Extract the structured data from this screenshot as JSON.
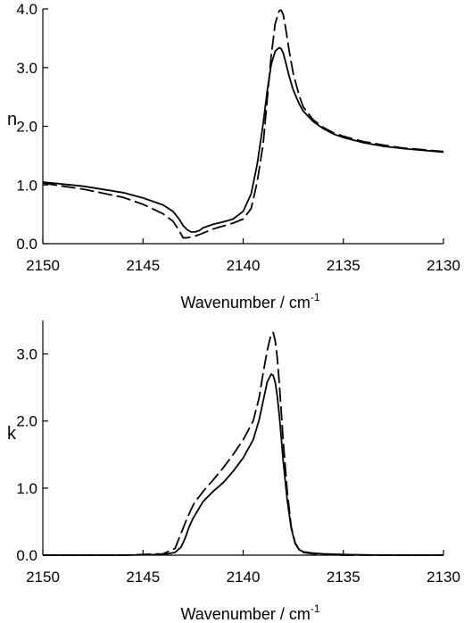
{
  "chart_data": [
    {
      "type": "line",
      "ylabel": "n",
      "xlabel": "Wavenumber / cm",
      "xlabel_sup": "-1",
      "xlim": [
        2150,
        2130
      ],
      "ylim": [
        0,
        4
      ],
      "xticks": [
        "2150",
        "2145",
        "2140",
        "2135",
        "2130"
      ],
      "xtick_values": [
        2150,
        2145,
        2140,
        2135,
        2130
      ],
      "yticks": [
        "0.0",
        "1.0",
        "2.0",
        "3.0",
        "4.0"
      ],
      "ytick_values": [
        0,
        1,
        2,
        3,
        4
      ],
      "grid": false,
      "series": [
        {
          "style": "solid",
          "x": [
            2150,
            2148,
            2146,
            2145,
            2144,
            2143.5,
            2143.2,
            2143,
            2142.8,
            2142.6,
            2142.4,
            2142.2,
            2142,
            2141.5,
            2141,
            2140.5,
            2140,
            2139.6,
            2139.3,
            2139,
            2138.8,
            2138.6,
            2138.4,
            2138.2,
            2138.1,
            2138,
            2137.9,
            2137.7,
            2137.5,
            2137.2,
            2137,
            2136.5,
            2136,
            2135.5,
            2135,
            2134,
            2133,
            2132,
            2131,
            2130
          ],
          "y": [
            1.05,
            0.98,
            0.87,
            0.78,
            0.66,
            0.55,
            0.42,
            0.31,
            0.24,
            0.2,
            0.2,
            0.22,
            0.27,
            0.33,
            0.37,
            0.42,
            0.55,
            0.85,
            1.35,
            2.05,
            2.6,
            3.05,
            3.28,
            3.34,
            3.32,
            3.25,
            3.12,
            2.85,
            2.62,
            2.38,
            2.26,
            2.08,
            1.96,
            1.87,
            1.81,
            1.72,
            1.66,
            1.62,
            1.59,
            1.56
          ]
        },
        {
          "style": "dashed",
          "x": [
            2150,
            2148,
            2146,
            2145,
            2144,
            2143.5,
            2143.2,
            2143,
            2142.8,
            2142.5,
            2142.3,
            2142,
            2141.5,
            2141,
            2140.5,
            2140,
            2139.6,
            2139.3,
            2139,
            2138.8,
            2138.6,
            2138.4,
            2138.2,
            2138.1,
            2138,
            2137.9,
            2137.7,
            2137.5,
            2137.2,
            2137,
            2136.5,
            2136,
            2135.5,
            2135,
            2134,
            2133,
            2132,
            2131,
            2130
          ],
          "y": [
            1.03,
            0.93,
            0.79,
            0.67,
            0.51,
            0.38,
            0.23,
            0.1,
            0.1,
            0.12,
            0.14,
            0.18,
            0.25,
            0.3,
            0.35,
            0.42,
            0.6,
            1.05,
            1.7,
            2.45,
            3.2,
            3.75,
            3.97,
            3.98,
            3.9,
            3.72,
            3.28,
            2.9,
            2.52,
            2.33,
            2.11,
            1.98,
            1.89,
            1.83,
            1.74,
            1.68,
            1.63,
            1.6,
            1.57
          ]
        }
      ]
    },
    {
      "type": "line",
      "ylabel": "k",
      "xlabel": "Wavenumber / cm",
      "xlabel_sup": "-1",
      "xlim": [
        2150,
        2130
      ],
      "ylim": [
        0,
        3.5
      ],
      "xticks": [
        "2150",
        "2145",
        "2140",
        "2135",
        "2130"
      ],
      "xtick_values": [
        2150,
        2145,
        2140,
        2135,
        2130
      ],
      "yticks": [
        "0.0",
        "1.0",
        "2.0",
        "3.0"
      ],
      "ytick_values": [
        0,
        1,
        2,
        3
      ],
      "grid": false,
      "series": [
        {
          "style": "solid",
          "x": [
            2150,
            2146,
            2144,
            2143.4,
            2143.1,
            2142.9,
            2142.7,
            2142.5,
            2142.2,
            2142,
            2141.5,
            2141,
            2140.5,
            2140,
            2139.5,
            2139.2,
            2139,
            2138.8,
            2138.6,
            2138.5,
            2138.4,
            2138.3,
            2138.2,
            2138.1,
            2138,
            2137.8,
            2137.6,
            2137.4,
            2137.2,
            2137,
            2136.5,
            2136,
            2135,
            2133,
            2130
          ],
          "y": [
            0,
            0,
            0.01,
            0.04,
            0.12,
            0.25,
            0.42,
            0.55,
            0.7,
            0.8,
            0.95,
            1.08,
            1.25,
            1.45,
            1.72,
            2.02,
            2.3,
            2.58,
            2.7,
            2.68,
            2.58,
            2.38,
            2.1,
            1.76,
            1.4,
            0.82,
            0.4,
            0.17,
            0.08,
            0.05,
            0.03,
            0.02,
            0.01,
            0.0,
            0.0
          ]
        },
        {
          "style": "dashed",
          "x": [
            2150,
            2146,
            2144,
            2143.4,
            2143.2,
            2143,
            2142.8,
            2142.6,
            2142.4,
            2142.2,
            2142,
            2141.5,
            2141,
            2140.5,
            2140,
            2139.5,
            2139.2,
            2139,
            2138.8,
            2138.6,
            2138.5,
            2138.4,
            2138.3,
            2138.2,
            2138.1,
            2138,
            2137.8,
            2137.6,
            2137.4,
            2137.2,
            2137,
            2136.5,
            2136,
            2135,
            2133,
            2130
          ],
          "y": [
            0,
            0,
            0.02,
            0.1,
            0.25,
            0.4,
            0.55,
            0.68,
            0.8,
            0.87,
            0.95,
            1.12,
            1.3,
            1.5,
            1.72,
            2.0,
            2.35,
            2.72,
            3.05,
            3.3,
            3.32,
            3.2,
            2.95,
            2.58,
            2.15,
            1.7,
            0.95,
            0.42,
            0.18,
            0.08,
            0.04,
            0.02,
            0.01,
            0.0,
            0.0,
            0.0
          ]
        }
      ]
    }
  ]
}
